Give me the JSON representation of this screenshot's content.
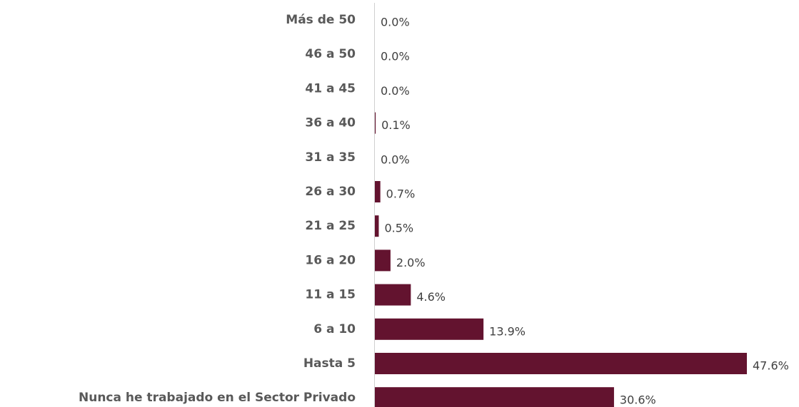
{
  "chart_data": {
    "type": "bar",
    "orientation": "horizontal",
    "categories": [
      "Más de 50",
      "46 a 50",
      "41 a 45",
      "36 a 40",
      "31 a 35",
      "26 a 30",
      "21 a 25",
      "16 a 20",
      "11 a 15",
      "6 a 10",
      "Hasta 5",
      "Nunca he trabajado en el Sector Privado"
    ],
    "values": [
      0.0,
      0.0,
      0.0,
      0.1,
      0.0,
      0.7,
      0.5,
      2.0,
      4.6,
      13.9,
      47.6,
      30.6
    ],
    "value_labels": [
      "0.0%",
      "0.0%",
      "0.0%",
      "0.1%",
      "0.0%",
      "0.7%",
      "0.5%",
      "2.0%",
      "4.6%",
      "13.9%",
      "47.6%",
      "30.6%"
    ],
    "color": "#63132f"
  }
}
